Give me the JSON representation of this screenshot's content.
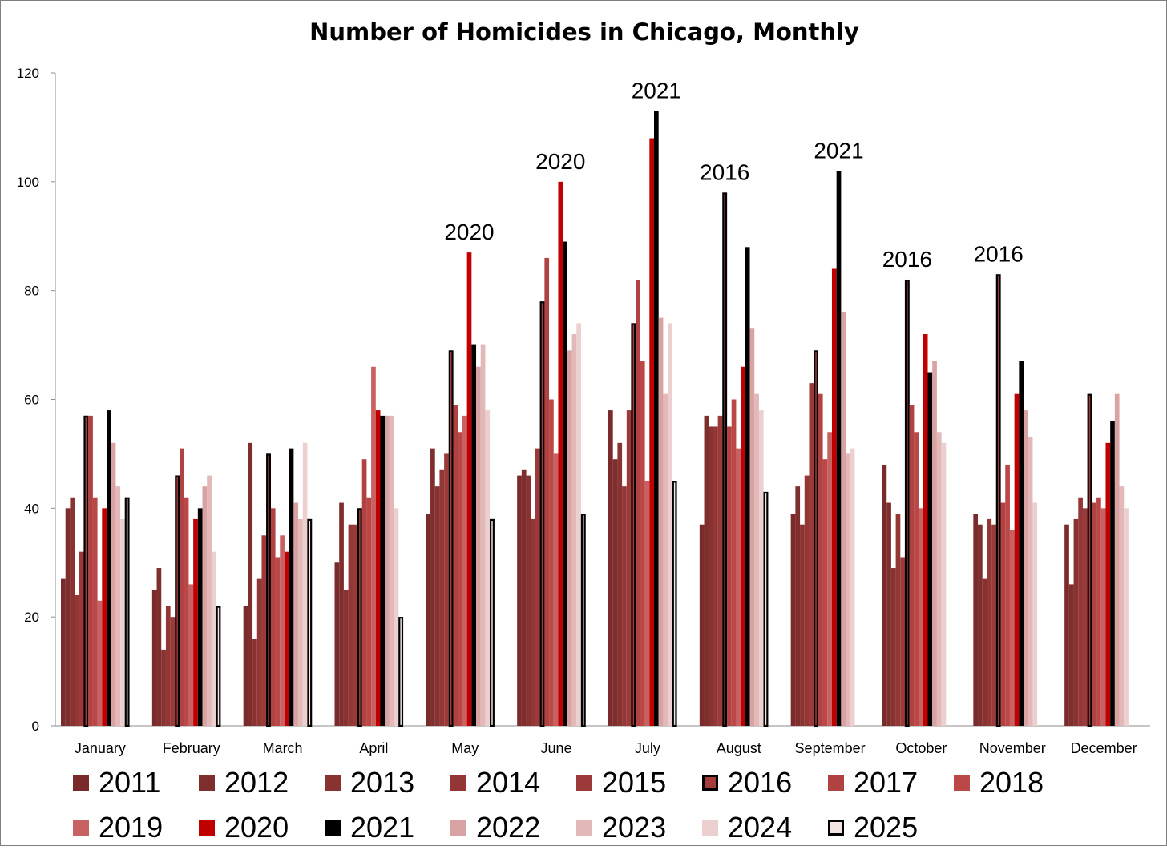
{
  "chart_data": {
    "type": "bar",
    "title": "Number of Homicides in Chicago, Monthly",
    "xlabel": "",
    "ylabel": "",
    "ylim": [
      0,
      120
    ],
    "yticks": [
      0,
      20,
      40,
      60,
      80,
      100,
      120
    ],
    "grid": false,
    "legend_position": "bottom",
    "categories": [
      "January",
      "February",
      "March",
      "April",
      "May",
      "June",
      "July",
      "August",
      "September",
      "October",
      "November",
      "December"
    ],
    "series": [
      {
        "name": "2011",
        "color": "#7a2a2a",
        "values": [
          27,
          25,
          22,
          30,
          39,
          46,
          58,
          37,
          39,
          48,
          39,
          37
        ]
      },
      {
        "name": "2012",
        "color": "#7f2e2e",
        "values": [
          40,
          29,
          52,
          41,
          51,
          47,
          49,
          57,
          44,
          41,
          37,
          26
        ]
      },
      {
        "name": "2013",
        "color": "#893232",
        "values": [
          42,
          14,
          16,
          25,
          44,
          46,
          52,
          55,
          37,
          29,
          27,
          38
        ]
      },
      {
        "name": "2014",
        "color": "#933636",
        "values": [
          24,
          22,
          27,
          37,
          47,
          38,
          44,
          55,
          46,
          39,
          38,
          42
        ]
      },
      {
        "name": "2015",
        "color": "#9c3a3a",
        "values": [
          32,
          20,
          35,
          37,
          50,
          51,
          58,
          57,
          63,
          31,
          37,
          40
        ]
      },
      {
        "name": "2016",
        "color": "#a53c3c",
        "outline": true,
        "values": [
          57,
          46,
          50,
          40,
          69,
          78,
          74,
          98,
          69,
          82,
          83,
          61
        ]
      },
      {
        "name": "2017",
        "color": "#b14242",
        "values": [
          57,
          51,
          40,
          49,
          59,
          86,
          82,
          55,
          61,
          59,
          41,
          41
        ]
      },
      {
        "name": "2018",
        "color": "#bc4747",
        "values": [
          42,
          42,
          31,
          42,
          54,
          60,
          67,
          60,
          49,
          54,
          48,
          42
        ]
      },
      {
        "name": "2019",
        "color": "#c86262",
        "values": [
          23,
          26,
          35,
          66,
          57,
          50,
          45,
          51,
          54,
          40,
          36,
          40
        ]
      },
      {
        "name": "2020",
        "color": "#c00000",
        "values": [
          40,
          38,
          32,
          58,
          87,
          100,
          108,
          66,
          84,
          72,
          61,
          52
        ]
      },
      {
        "name": "2021",
        "color": "#000000",
        "values": [
          58,
          40,
          51,
          57,
          70,
          89,
          113,
          88,
          102,
          65,
          67,
          56
        ]
      },
      {
        "name": "2022",
        "color": "#d9a3a3",
        "values": [
          52,
          44,
          41,
          57,
          66,
          69,
          75,
          73,
          76,
          67,
          58,
          61
        ]
      },
      {
        "name": "2023",
        "color": "#e2b8b8",
        "values": [
          44,
          46,
          38,
          57,
          70,
          72,
          61,
          61,
          50,
          54,
          53,
          44
        ]
      },
      {
        "name": "2024",
        "color": "#ecd0d0",
        "values": [
          38,
          32,
          52,
          40,
          58,
          74,
          74,
          58,
          51,
          52,
          41,
          40
        ]
      },
      {
        "name": "2025",
        "color": "#f2e4e4",
        "outline": true,
        "values": [
          42,
          22,
          38,
          20,
          38,
          39,
          45,
          43,
          null,
          null,
          null,
          null
        ]
      }
    ],
    "annotations": [
      {
        "category": "May",
        "series": "2020",
        "text": "2020"
      },
      {
        "category": "June",
        "series": "2020",
        "text": "2020"
      },
      {
        "category": "July",
        "series": "2021",
        "text": "2021"
      },
      {
        "category": "August",
        "series": "2016",
        "text": "2016"
      },
      {
        "category": "September",
        "series": "2021",
        "text": "2021"
      },
      {
        "category": "October",
        "series": "2016",
        "text": "2016"
      },
      {
        "category": "November",
        "series": "2016",
        "text": "2016"
      }
    ]
  }
}
